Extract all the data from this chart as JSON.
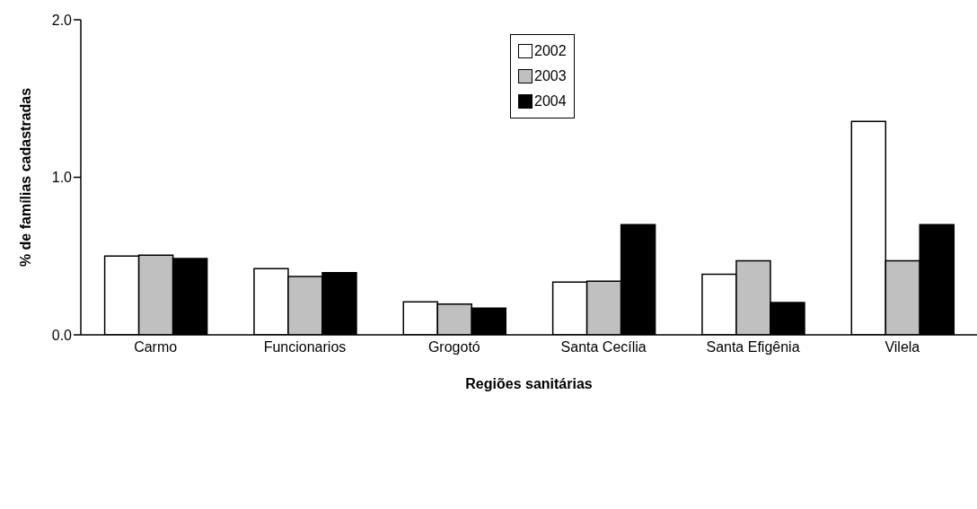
{
  "chart_data": {
    "type": "bar",
    "xlabel": "Regiões sanitárias",
    "ylabel": "% de famílias cadastradas",
    "categories": [
      "Carmo",
      "Funcionarios",
      "Grogotó",
      "Santa Cecília",
      "Santa Efigênia",
      "Vilela"
    ],
    "series": [
      {
        "name": "2002",
        "color": "#ffffff",
        "values": [
          0.5,
          0.42,
          0.21,
          0.335,
          0.385,
          1.355
        ]
      },
      {
        "name": "2003",
        "color": "#c0c0c0",
        "values": [
          0.505,
          0.37,
          0.195,
          0.34,
          0.47,
          0.47
        ]
      },
      {
        "name": "2004",
        "color": "#000000",
        "values": [
          0.485,
          0.395,
          0.17,
          0.7,
          0.205,
          0.7
        ]
      }
    ],
    "ylim": [
      0,
      2
    ],
    "yticks": [
      {
        "value": 0,
        "label": "0.0"
      },
      {
        "value": 1,
        "label": "1.0"
      },
      {
        "value": 2,
        "label": "2.0"
      }
    ],
    "grid": false,
    "legend": "top"
  }
}
